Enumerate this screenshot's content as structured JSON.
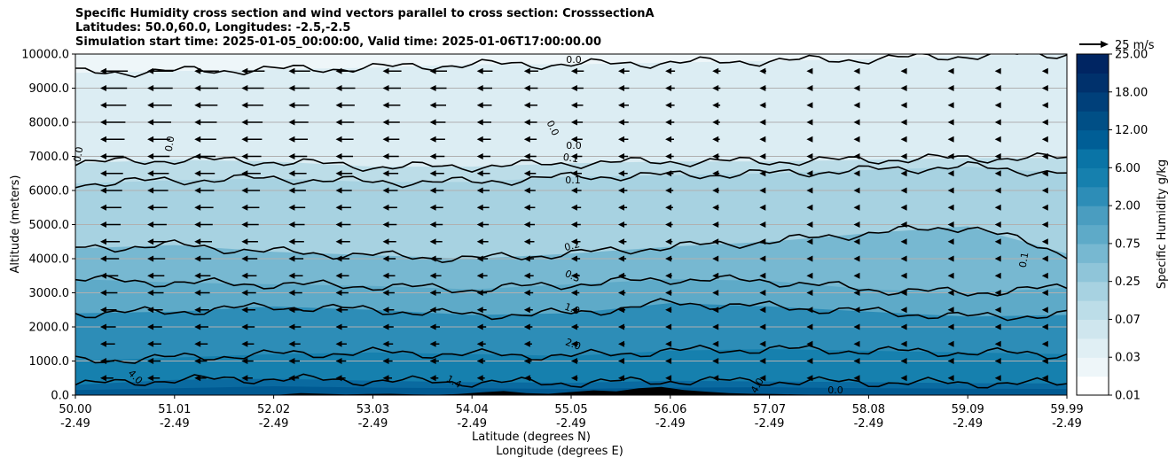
{
  "title_lines": [
    "Specific Humidity cross section and wind vectors parallel to cross section: CrosssectionA",
    "Latitudes: 50.0,60.0, Longitudes: -2.5,-2.5",
    "Simulation start time: 2025-01-05_00:00:00, Valid time: 2025-01-06T17:00:00.00"
  ],
  "chart_data": {
    "type": "contour-cross-section",
    "title": "Specific Humidity cross section and wind vectors parallel to cross section: CrosssectionA",
    "ylabel": "Altitude (meters)",
    "xlabel_lines": [
      "Latitude (degrees N)",
      "Longitude (degrees E)"
    ],
    "ylim": [
      0,
      10000
    ],
    "y_ticks": [
      0,
      1000,
      2000,
      3000,
      4000,
      5000,
      6000,
      7000,
      8000,
      9000,
      10000
    ],
    "y_tick_labels": [
      "0.0",
      "1000.0",
      "2000.0",
      "3000.0",
      "4000.0",
      "5000.0",
      "6000.0",
      "7000.0",
      "8000.0",
      "9000.0",
      "10000.0"
    ],
    "x_ticks": [
      {
        "lat": "50.00",
        "lon": "-2.49"
      },
      {
        "lat": "51.01",
        "lon": "-2.49"
      },
      {
        "lat": "52.02",
        "lon": "-2.49"
      },
      {
        "lat": "53.03",
        "lon": "-2.49"
      },
      {
        "lat": "54.04",
        "lon": "-2.49"
      },
      {
        "lat": "55.05",
        "lon": "-2.49"
      },
      {
        "lat": "56.06",
        "lon": "-2.49"
      },
      {
        "lat": "57.07",
        "lon": "-2.49"
      },
      {
        "lat": "58.08",
        "lon": "-2.49"
      },
      {
        "lat": "59.09",
        "lon": "-2.49"
      },
      {
        "lat": "59.99",
        "lon": "-2.49"
      }
    ],
    "grid": "horizontal",
    "colorbar": {
      "label": "Specific Humidity g/kg",
      "tick_labels": [
        "0.01",
        "0.03",
        "0.07",
        "0.25",
        "0.75",
        "2.00",
        "6.00",
        "12.00",
        "18.00",
        "25.00"
      ],
      "levels": [
        0.01,
        0.02,
        0.03,
        0.05,
        0.07,
        0.1,
        0.25,
        0.5,
        0.75,
        1.0,
        2.0,
        4.0,
        6.0,
        9.0,
        12.0,
        15.0,
        18.0,
        21.0,
        25.0
      ],
      "colors": [
        "#ffffff",
        "#eef6f9",
        "#e0eff4",
        "#cfe6ee",
        "#bcdde8",
        "#a7d2e1",
        "#8fc5d9",
        "#77b8d1",
        "#5eaac8",
        "#4a9dc0",
        "#2d8db7",
        "#1680ae",
        "#0a74a6",
        "#005e96",
        "#004f86",
        "#00407a",
        "#00316c",
        "#002562"
      ]
    },
    "vector_key": {
      "label": "25 m/s",
      "value": 25
    },
    "isoline_labels": [
      "0.0",
      "0.0",
      "0.0",
      "0.0",
      "0.0",
      "0.1",
      "0.1",
      "0.2",
      "0.5",
      "1.0",
      "2.0",
      "4.0",
      "1.4",
      "4.0",
      "0.0",
      "0.1"
    ],
    "isolines_g_per_kg": [
      {
        "level": 4.0,
        "alt_m": [
          300,
          450,
          480,
          420,
          380,
          360,
          420,
          400,
          380,
          350,
          340
        ]
      },
      {
        "level": 2.0,
        "alt_m": [
          1000,
          1100,
          1200,
          1250,
          1200,
          1150,
          1300,
          1350,
          1300,
          1250,
          1200
        ]
      },
      {
        "level": 1.0,
        "alt_m": [
          2400,
          2450,
          2600,
          2500,
          2350,
          2400,
          2700,
          2600,
          2450,
          2300,
          2350
        ]
      },
      {
        "level": 0.5,
        "alt_m": [
          3400,
          3300,
          3250,
          3200,
          3100,
          3250,
          3400,
          3350,
          3100,
          3000,
          3150
        ]
      },
      {
        "level": 0.2,
        "alt_m": [
          4300,
          4400,
          4200,
          4100,
          4000,
          4150,
          4350,
          4500,
          4750,
          4950,
          4150
        ]
      },
      {
        "level": 0.1,
        "alt_m": [
          6200,
          6300,
          6350,
          6250,
          6250,
          6400,
          6450,
          6500,
          6600,
          6700,
          6500
        ]
      },
      {
        "level": 0.1,
        "alt_m": [
          6800,
          6900,
          6850,
          6700,
          6700,
          6800,
          6850,
          6850,
          6900,
          6950,
          6950
        ]
      },
      {
        "level": 0.0,
        "alt_m": [
          9450,
          9500,
          9550,
          9600,
          9700,
          9700,
          9750,
          9800,
          9850,
          9950,
          10000
        ]
      }
    ],
    "wind_vectors_note": "Wind vectors parallel to cross section, pointing toward lower latitude; strongest in upper levels of southern half, diminishing toward 59.99"
  }
}
